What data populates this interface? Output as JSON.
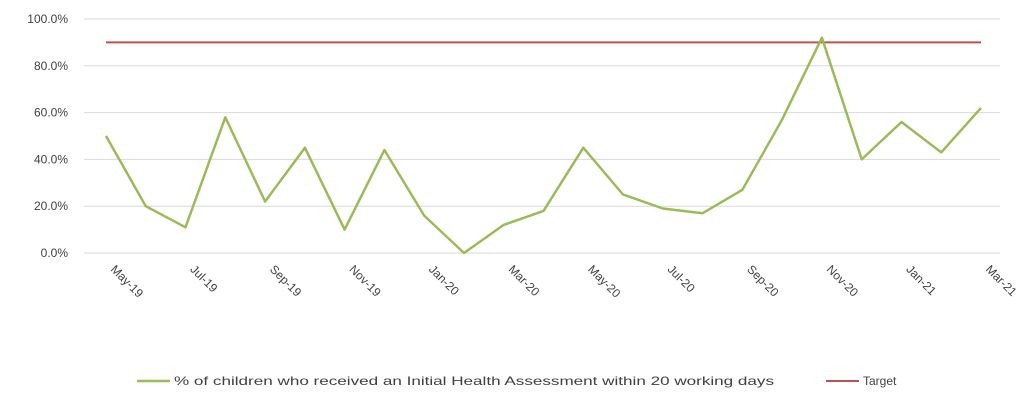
{
  "chart_data": {
    "type": "line",
    "title": "",
    "xlabel": "",
    "ylabel": "",
    "ylim": [
      0,
      100
    ],
    "y_ticks": [
      "0.0%",
      "20.0%",
      "40.0%",
      "60.0%",
      "80.0%",
      "100.0%"
    ],
    "y_tick_values": [
      0,
      20,
      40,
      60,
      80,
      100
    ],
    "grid": true,
    "legend_position": "bottom",
    "x": [
      "May-19",
      "Jun-19",
      "Jul-19",
      "Aug-19",
      "Sep-19",
      "Oct-19",
      "Nov-19",
      "Dec-19",
      "Jan-20",
      "Feb-20",
      "Mar-20",
      "Apr-20",
      "May-20",
      "Jun-20",
      "Jul-20",
      "Aug-20",
      "Sep-20",
      "Oct-20",
      "Nov-20",
      "Dec-20",
      "Jan-21",
      "Feb-21",
      "Mar-21"
    ],
    "x_tick_labels": [
      "May-19",
      "",
      "Jul-19",
      "",
      "Sep-19",
      "",
      "Nov-19",
      "",
      "Jan-20",
      "",
      "Mar-20",
      "",
      "May-20",
      "",
      "Jul-20",
      "",
      "Sep-20",
      "",
      "Nov-20",
      "",
      "Jan-21",
      "",
      "Mar-21"
    ],
    "series": [
      {
        "name": "% of children who received an Initial Health Assessment within 20 working days",
        "color": "#9BBB59",
        "values": [
          50,
          20,
          11,
          58,
          22,
          45,
          10,
          44,
          16,
          0,
          12,
          18,
          45,
          25,
          19,
          17,
          27,
          57,
          92,
          40,
          56,
          43,
          62
        ]
      },
      {
        "name": "Target",
        "color": "#C0504D",
        "values": [
          90,
          90,
          90,
          90,
          90,
          90,
          90,
          90,
          90,
          90,
          90,
          90,
          90,
          90,
          90,
          90,
          90,
          90,
          90,
          90,
          90,
          90,
          90
        ]
      }
    ]
  }
}
